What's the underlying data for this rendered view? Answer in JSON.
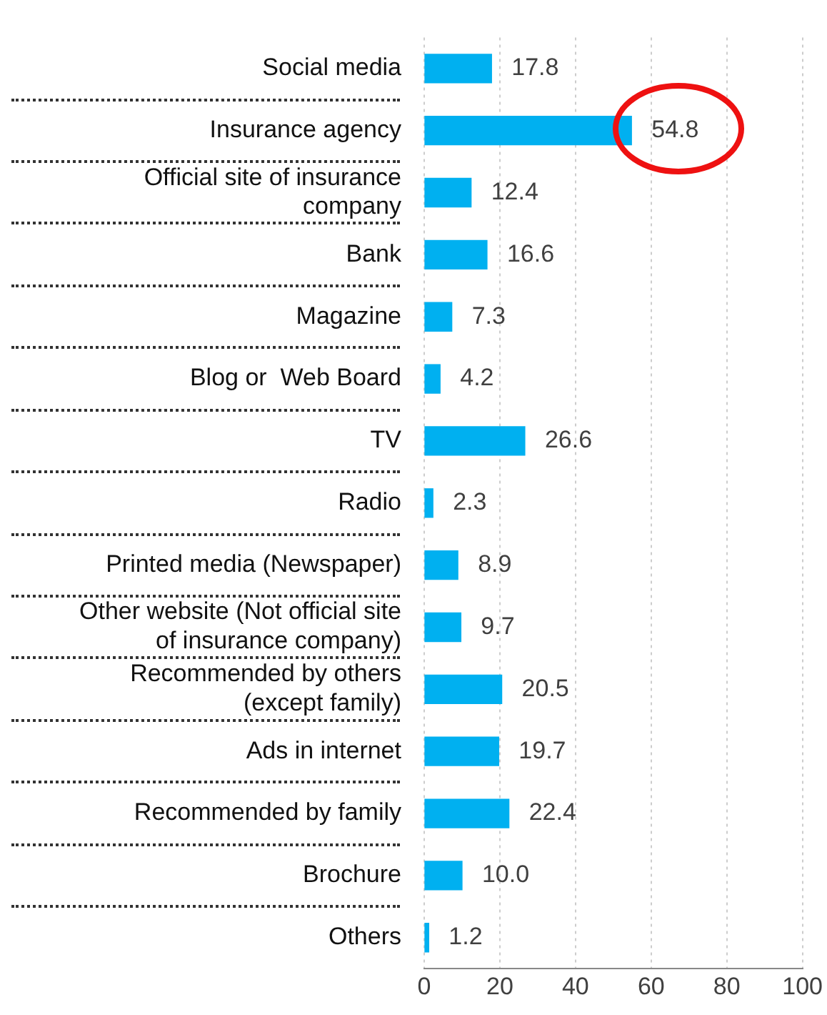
{
  "chart_data": {
    "type": "bar",
    "orientation": "horizontal",
    "categories": [
      "Social media",
      "Insurance agency",
      "Official site of insurance company",
      "Bank",
      "Magazine",
      "Blog or  Web Board",
      "TV",
      "Radio",
      "Printed media (Newspaper)",
      "Other website (Not official site of insurance company)",
      "Recommended by others (except family)",
      "Ads in internet",
      "Recommended by family",
      "Brochure",
      "Others"
    ],
    "values": [
      17.8,
      54.8,
      12.4,
      16.6,
      7.3,
      4.2,
      26.6,
      2.3,
      8.9,
      9.7,
      20.5,
      19.7,
      22.4,
      10.0,
      1.2
    ],
    "value_labels": [
      "17.8",
      "54.8",
      "12.4",
      "16.6",
      "7.3",
      "4.2",
      "26.6",
      "2.3",
      "8.9",
      "9.7",
      "20.5",
      "19.7",
      "22.4",
      "10.0",
      "1.2"
    ],
    "color": "#00b0f0",
    "xlim": [
      0,
      100
    ],
    "xticks": [
      0,
      20,
      40,
      60,
      80,
      100
    ],
    "grid": "x",
    "legend": false
  }
}
